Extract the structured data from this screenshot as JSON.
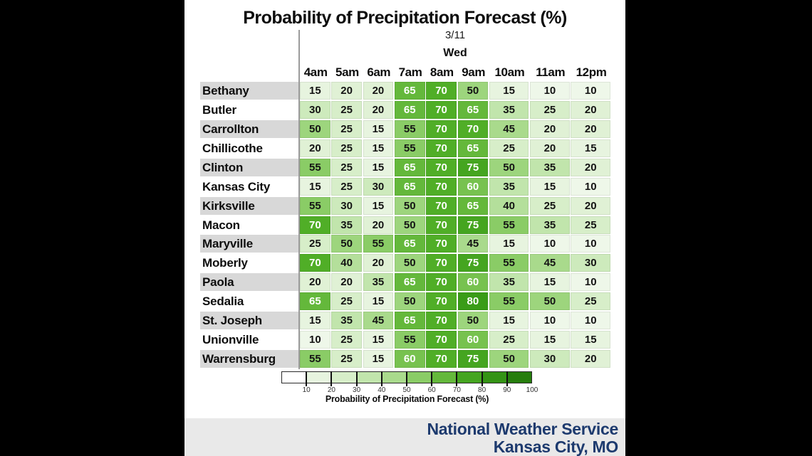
{
  "canvas": {
    "background": "#000000",
    "panel_background": "#ffffff"
  },
  "chart_data": {
    "type": "heatmap",
    "title": "Probability of Precipitation Forecast (%)",
    "date_label": "3/11",
    "day_label": "Wed",
    "columns": [
      "4am",
      "5am",
      "6am",
      "7am",
      "8am",
      "9am",
      "10am",
      "11am",
      "12pm"
    ],
    "rows": [
      {
        "name": "Bethany",
        "values": [
          15,
          20,
          20,
          65,
          70,
          50,
          15,
          10,
          10
        ]
      },
      {
        "name": "Butler",
        "values": [
          30,
          25,
          20,
          65,
          70,
          65,
          35,
          25,
          20
        ]
      },
      {
        "name": "Carrollton",
        "values": [
          50,
          25,
          15,
          55,
          70,
          70,
          45,
          20,
          20
        ]
      },
      {
        "name": "Chillicothe",
        "values": [
          20,
          25,
          15,
          55,
          70,
          65,
          25,
          20,
          15
        ]
      },
      {
        "name": "Clinton",
        "values": [
          55,
          25,
          15,
          65,
          70,
          75,
          50,
          35,
          20
        ]
      },
      {
        "name": "Kansas City",
        "values": [
          15,
          25,
          30,
          65,
          70,
          60,
          35,
          15,
          10
        ]
      },
      {
        "name": "Kirksville",
        "values": [
          55,
          30,
          15,
          50,
          70,
          65,
          40,
          25,
          20
        ]
      },
      {
        "name": "Macon",
        "values": [
          70,
          35,
          20,
          50,
          70,
          75,
          55,
          35,
          25
        ]
      },
      {
        "name": "Maryville",
        "values": [
          25,
          50,
          55,
          65,
          70,
          45,
          15,
          10,
          10
        ]
      },
      {
        "name": "Moberly",
        "values": [
          70,
          40,
          20,
          50,
          70,
          75,
          55,
          45,
          30
        ]
      },
      {
        "name": "Paola",
        "values": [
          20,
          20,
          35,
          65,
          70,
          60,
          35,
          15,
          10
        ]
      },
      {
        "name": "Sedalia",
        "values": [
          65,
          25,
          15,
          50,
          70,
          80,
          55,
          50,
          25
        ]
      },
      {
        "name": "St. Joseph",
        "values": [
          15,
          35,
          45,
          65,
          70,
          50,
          15,
          10,
          10
        ]
      },
      {
        "name": "Unionville",
        "values": [
          10,
          25,
          15,
          55,
          70,
          60,
          25,
          15,
          15
        ]
      },
      {
        "name": "Warrensburg",
        "values": [
          55,
          25,
          15,
          60,
          70,
          75,
          50,
          30,
          20
        ]
      }
    ],
    "value_range": [
      0,
      100
    ],
    "legend": {
      "ticks": [
        10,
        20,
        30,
        40,
        50,
        60,
        70,
        80,
        90,
        100
      ],
      "caption": "Probability of Precipitation Forecast (%)",
      "position": "bottom"
    },
    "colormap": {
      "stops": [
        [
          0,
          "#ffffff"
        ],
        [
          10,
          "#eef7e9"
        ],
        [
          20,
          "#e0f1d5"
        ],
        [
          30,
          "#cdeabc"
        ],
        [
          40,
          "#b4df9b"
        ],
        [
          50,
          "#9dd57d"
        ],
        [
          60,
          "#77c24f"
        ],
        [
          70,
          "#50ae27"
        ],
        [
          80,
          "#3a9c18"
        ],
        [
          90,
          "#2d8a11"
        ],
        [
          100,
          "#1f7009"
        ]
      ],
      "white_text_threshold": 60,
      "dark_text_color": "#141414",
      "light_text_color": "#ffffff"
    },
    "row_label_alt_background": "#d8d8d8",
    "grid": "off"
  },
  "footer": {
    "line1": "National Weather Service",
    "line2": "Kansas City, MO",
    "text_color": "#1d3a6e",
    "background": "#e9e9e9"
  }
}
